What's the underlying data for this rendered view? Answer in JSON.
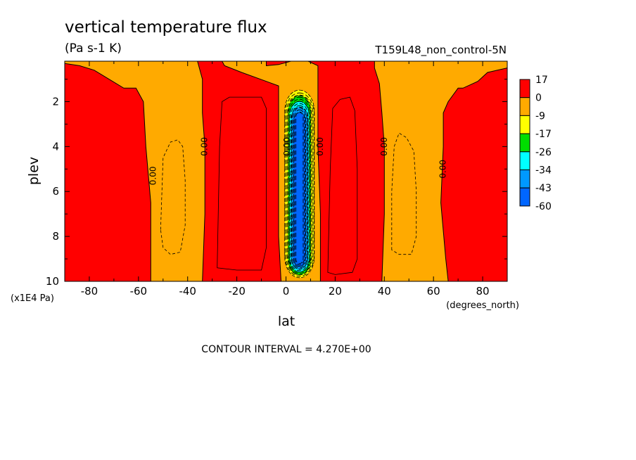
{
  "chart_data": {
    "type": "heatmap",
    "title": "vertical temperature flux",
    "units": "(Pa s-1 K)",
    "run_label": "T159L48_non_control-5N",
    "xlabel": "lat",
    "x_unit_label": "(degrees_north)",
    "ylabel": "plev",
    "y_unit_label": "(x1E4 Pa)",
    "x_range": [
      -90,
      90
    ],
    "y_range": [
      0.2,
      10
    ],
    "y_inverted": true,
    "x_ticks": [
      -80,
      -60,
      -40,
      -20,
      0,
      20,
      40,
      60,
      80
    ],
    "x_tick_labels": [
      "-80",
      "-60",
      "-40",
      "-20",
      "0",
      "20",
      "40",
      "60",
      "80"
    ],
    "y_ticks": [
      2,
      4,
      6,
      8,
      10
    ],
    "y_tick_labels": [
      "2",
      "4",
      "6",
      "8",
      "10"
    ],
    "contour_interval_text": "CONTOUR INTERVAL = 4.270E+00",
    "contour_value_labels": [
      {
        "text": "0.00",
        "lat": -54,
        "plev": 5.3
      },
      {
        "text": "0.00",
        "lat": -33,
        "plev": 4.0
      },
      {
        "text": "0.00",
        "lat": 0.6,
        "plev": 4.0
      },
      {
        "text": "0.00",
        "lat": 14,
        "plev": 4.0
      },
      {
        "text": "0.00",
        "lat": 40,
        "plev": 4.0
      },
      {
        "text": "0.00",
        "lat": 64,
        "plev": 5.0
      }
    ],
    "legend": {
      "placement": "right",
      "boundary_labels": [
        "17",
        "0",
        "-9",
        "-17",
        "-26",
        "-34",
        "-43",
        "-60"
      ],
      "colors": [
        "#ff0000",
        "#ffaa00",
        "#ffff00",
        "#00dd00",
        "#00ffff",
        "#0099ff",
        "#0066ff"
      ]
    },
    "regions": {
      "background_level": 0,
      "neg_bands": [
        {
          "edge": [
            [
              -55,
              10
            ],
            [
              -55,
              6.5
            ],
            [
              -57,
              4
            ],
            [
              -58,
              2
            ],
            [
              -61,
              1.4
            ],
            [
              -66,
              1.4
            ],
            [
              -72,
              1.0
            ],
            [
              -78,
              0.6
            ],
            [
              -84,
              0.4
            ],
            [
              -90,
              0.3
            ],
            [
              -90,
              0.2
            ],
            [
              -36,
              0.2
            ],
            [
              -34,
              1.0
            ],
            [
              -34,
              2.5
            ],
            [
              -33,
              4
            ],
            [
              -33,
              7
            ],
            [
              -34,
              10
            ]
          ]
        },
        {
          "edge": [
            [
              -2,
              10
            ],
            [
              -3,
              8
            ],
            [
              -3,
              3
            ],
            [
              -3,
              1.3
            ],
            [
              -8,
              1.1
            ],
            [
              -18,
              0.7
            ],
            [
              -25,
              0.4
            ],
            [
              -26,
              0.2
            ],
            [
              -8,
              0.2
            ],
            [
              -8,
              0.4
            ],
            [
              -3,
              0.35
            ],
            [
              2,
              0.2
            ],
            [
              9,
              0.2
            ],
            [
              13,
              0.4
            ],
            [
              13,
              1.3
            ],
            [
              13,
              4
            ],
            [
              14,
              7
            ],
            [
              14,
              10
            ]
          ]
        },
        {
          "edge": [
            [
              39,
              10
            ],
            [
              40,
              7
            ],
            [
              40,
              4
            ],
            [
              39,
              2.5
            ],
            [
              38,
              1.2
            ],
            [
              36,
              0.5
            ],
            [
              36,
              0.2
            ],
            [
              90,
              0.2
            ],
            [
              90,
              0.5
            ],
            [
              82,
              0.7
            ],
            [
              78,
              1.1
            ],
            [
              72,
              1.4
            ],
            [
              70,
              1.4
            ],
            [
              66,
              2.0
            ],
            [
              64,
              2.5
            ],
            [
              64,
              4
            ],
            [
              63,
              6.5
            ],
            [
              65,
              9
            ],
            [
              66,
              10
            ]
          ]
        }
      ],
      "neg_inner_dashed": [
        [
          [
            -51,
            7.7
          ],
          [
            -50,
            4.5
          ],
          [
            -47,
            3.8
          ],
          [
            -44,
            3.7
          ],
          [
            -42,
            4
          ],
          [
            -41,
            5.5
          ],
          [
            -41,
            7.5
          ],
          [
            -43,
            8.7
          ],
          [
            -47,
            8.8
          ],
          [
            -50,
            8.5
          ]
        ],
        [
          [
            43,
            8.6
          ],
          [
            43,
            6
          ],
          [
            44,
            4
          ],
          [
            46,
            3.4
          ],
          [
            49,
            3.6
          ],
          [
            52,
            4.2
          ],
          [
            53,
            6
          ],
          [
            53,
            8
          ],
          [
            51,
            8.8
          ],
          [
            46,
            8.8
          ]
        ]
      ],
      "pos_inner_solid": [
        [
          [
            -28,
            9.4
          ],
          [
            -27,
            4
          ],
          [
            -26,
            2
          ],
          [
            -23,
            1.8
          ],
          [
            -10,
            1.8
          ],
          [
            -8,
            2.3
          ],
          [
            -8,
            8.5
          ],
          [
            -10,
            9.5
          ],
          [
            -20,
            9.5
          ]
        ],
        [
          [
            17,
            9.6
          ],
          [
            18,
            5
          ],
          [
            19,
            2.3
          ],
          [
            22,
            1.9
          ],
          [
            26,
            1.8
          ],
          [
            28,
            2.4
          ],
          [
            29,
            5
          ],
          [
            29,
            9
          ],
          [
            27,
            9.6
          ],
          [
            20,
            9.7
          ]
        ]
      ],
      "core": {
        "center_lat": 5.5,
        "plev_top": 1.3,
        "plev_bottom": 9.9,
        "half_width_deg": 6.0,
        "bands": [
          {
            "level": "-9",
            "color": "#ffff00",
            "half_width_deg": 6.0
          },
          {
            "level": "-17",
            "color": "#00dd00",
            "half_width_deg": 4.6
          },
          {
            "level": "-26",
            "color": "#00ffff",
            "half_width_deg": 4.0
          },
          {
            "level": "-34",
            "color": "#0099ff",
            "half_width_deg": 3.3
          },
          {
            "level": "-43",
            "color": "#0066ff",
            "half_width_deg": 2.4
          }
        ]
      }
    }
  }
}
